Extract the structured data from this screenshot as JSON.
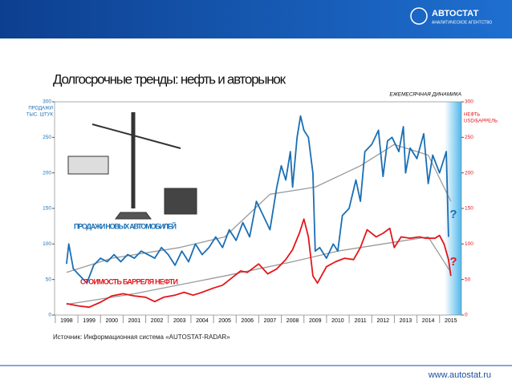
{
  "header": {
    "logo": "АВТОСТАТ",
    "logo_sub": "АНАЛИТИЧЕСКОЕ АГЕНТСТВО"
  },
  "chart_data": {
    "type": "line",
    "title": "Долгосрочные тренды: нефть и авторынок",
    "subtitle": "ЕЖЕМЕСЯЧНАЯ ДИНАМИКА",
    "ylabel": [
      "ПРОДАЖИ",
      "ТЫС. ШТУК"
    ],
    "y2label": [
      "НЕФТЬ",
      "USD/БАРРЕЛЬ"
    ],
    "xlim": [
      1997.47,
      2015.47
    ],
    "xticks": [
      1998,
      1999,
      2000,
      2001,
      2002,
      2003,
      2004,
      2005,
      2006,
      2007,
      2008,
      2009,
      2010,
      2011,
      2012,
      2013,
      2014,
      2015
    ],
    "ylim": [
      0,
      300
    ],
    "yticks": [
      0,
      50,
      100,
      150,
      200,
      250,
      300
    ],
    "y2lim": [
      0,
      300
    ],
    "y2ticks": [
      0,
      50,
      100,
      150,
      200,
      250,
      300
    ],
    "series": [
      {
        "name": "ПРОДАЖИ НОВЫХ АВТОМОБИЛЕЙ",
        "color": "#1a6fb5",
        "x": [
          1998.0,
          1998.1,
          1998.3,
          1998.6,
          1998.9,
          1999.2,
          1999.5,
          1999.8,
          2000.1,
          2000.4,
          2000.7,
          2001.0,
          2001.3,
          2001.6,
          2001.9,
          2002.2,
          2002.5,
          2002.8,
          2003.1,
          2003.4,
          2003.7,
          2004.0,
          2004.3,
          2004.6,
          2004.9,
          2005.2,
          2005.5,
          2005.8,
          2006.1,
          2006.4,
          2006.7,
          2007.0,
          2007.3,
          2007.5,
          2007.7,
          2007.9,
          2008.0,
          2008.2,
          2008.35,
          2008.5,
          2008.7,
          2008.9,
          2009.0,
          2009.2,
          2009.5,
          2009.8,
          2010.0,
          2010.2,
          2010.5,
          2010.8,
          2011.0,
          2011.2,
          2011.5,
          2011.8,
          2012.0,
          2012.2,
          2012.4,
          2012.7,
          2012.9,
          2013.0,
          2013.2,
          2013.5,
          2013.8,
          2014.0,
          2014.2,
          2014.5,
          2014.8,
          2014.9
        ],
        "values": [
          72,
          100,
          65,
          55,
          45,
          70,
          80,
          75,
          85,
          75,
          85,
          80,
          90,
          85,
          80,
          95,
          85,
          70,
          90,
          75,
          100,
          85,
          95,
          110,
          95,
          120,
          105,
          130,
          110,
          160,
          140,
          120,
          180,
          210,
          190,
          230,
          180,
          250,
          280,
          260,
          250,
          200,
          90,
          95,
          80,
          100,
          90,
          140,
          150,
          190,
          160,
          230,
          240,
          260,
          195,
          245,
          250,
          230,
          265,
          200,
          235,
          220,
          255,
          185,
          225,
          200,
          230,
          110
        ]
      },
      {
        "name": "СТОИМОСТЬ БАРРЕЛЯ НЕФТИ",
        "color": "#e3161b",
        "axis": "y2",
        "x": [
          1998.0,
          1998.5,
          1999.0,
          1999.5,
          2000.0,
          2000.5,
          2001.0,
          2001.5,
          2001.9,
          2002.3,
          2002.8,
          2003.2,
          2003.6,
          2004.0,
          2004.5,
          2004.9,
          2005.3,
          2005.7,
          2006.0,
          2006.5,
          2006.9,
          2007.3,
          2007.7,
          2008.0,
          2008.3,
          2008.5,
          2008.7,
          2008.9,
          2009.1,
          2009.5,
          2009.9,
          2010.3,
          2010.7,
          2011.0,
          2011.3,
          2011.7,
          2012.0,
          2012.3,
          2012.5,
          2012.8,
          2013.2,
          2013.6,
          2013.9,
          2014.3,
          2014.5,
          2014.7,
          2014.9,
          2015.0
        ],
        "values": [
          16,
          13,
          11,
          18,
          27,
          30,
          27,
          25,
          19,
          25,
          28,
          32,
          28,
          32,
          38,
          42,
          52,
          62,
          60,
          72,
          58,
          65,
          78,
          92,
          115,
          135,
          110,
          55,
          45,
          68,
          75,
          80,
          78,
          95,
          120,
          110,
          115,
          122,
          95,
          110,
          108,
          110,
          108,
          108,
          112,
          100,
          78,
          55
        ]
      }
    ],
    "trends": [
      {
        "color": "#9a9a9a",
        "x": [
          1998,
          2000,
          2003,
          2005,
          2007,
          2009,
          2011,
          2012.5,
          2014,
          2015
        ],
        "values": [
          60,
          80,
          95,
          110,
          170,
          180,
          210,
          240,
          225,
          160
        ]
      },
      {
        "color": "#9a9a9a",
        "axis": "y2",
        "x": [
          1998,
          2001,
          2005,
          2008,
          2010,
          2012,
          2014,
          2015
        ],
        "values": [
          15,
          30,
          55,
          75,
          90,
          100,
          110,
          60
        ]
      }
    ],
    "annotations": [
      "?",
      "?"
    ],
    "source": "Источник: Информационная система «AUTOSTAT-RADAR»"
  },
  "footer": {
    "url": "www.autostat.ru"
  }
}
